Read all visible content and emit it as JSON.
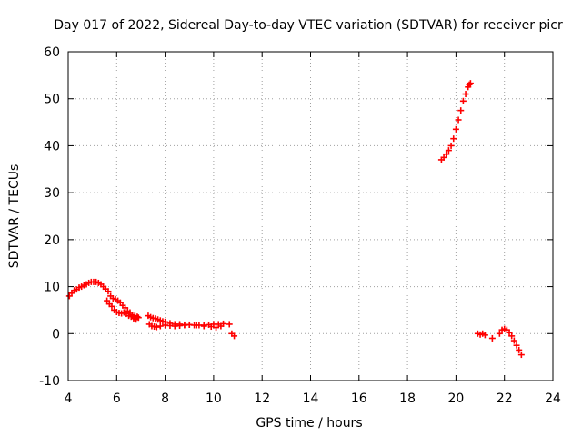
{
  "chart_data": {
    "type": "scatter",
    "title": "Day 017 of 2022, Sidereal Day-to-day VTEC variation (SDTVAR) for receiver picr",
    "xlabel": "GPS time / hours",
    "ylabel": "SDTVAR / TECUs",
    "xlim": [
      4,
      24
    ],
    "ylim": [
      -10,
      60
    ],
    "xticks": [
      4,
      6,
      8,
      10,
      12,
      14,
      16,
      18,
      20,
      22,
      24
    ],
    "yticks": [
      -10,
      0,
      10,
      20,
      30,
      40,
      50,
      60
    ],
    "grid": true,
    "marker": "+",
    "colors": {
      "series": "#ff0000",
      "grid": "#a0a0a0",
      "axes": "#000000"
    },
    "series": [
      {
        "name": "SDTVAR",
        "x": [
          4.05,
          4.15,
          4.25,
          4.35,
          4.45,
          4.55,
          4.65,
          4.75,
          4.85,
          4.95,
          5.05,
          5.15,
          5.25,
          5.35,
          5.45,
          5.55,
          5.65,
          5.75,
          5.85,
          5.95,
          6.05,
          6.15,
          6.25,
          6.35,
          6.45,
          6.55,
          6.65,
          6.75,
          6.85,
          5.6,
          5.7,
          5.8,
          5.9,
          6.0,
          6.1,
          6.2,
          6.3,
          6.4,
          6.5,
          6.6,
          6.7,
          6.8,
          6.9,
          7.3,
          7.4,
          7.5,
          7.6,
          7.7,
          7.8,
          7.9,
          8.0,
          8.2,
          8.4,
          8.6,
          8.8,
          9.0,
          9.2,
          9.4,
          9.6,
          9.8,
          10.0,
          10.2,
          10.4,
          7.35,
          7.45,
          7.55,
          7.65,
          7.8,
          8.0,
          8.2,
          8.4,
          8.6,
          8.8,
          9.0,
          9.3,
          9.6,
          9.9,
          10.1,
          10.3,
          10.65,
          10.75,
          10.85,
          19.4,
          19.5,
          19.6,
          19.7,
          19.8,
          19.9,
          20.0,
          20.1,
          20.2,
          20.3,
          20.4,
          20.5,
          20.55,
          20.6,
          20.9,
          21.0,
          21.1,
          21.2,
          21.5,
          21.8,
          21.9,
          22.0,
          22.1,
          22.2,
          22.3,
          22.4,
          22.5,
          22.6,
          22.7
        ],
        "y": [
          8.0,
          8.6,
          9.2,
          9.4,
          9.8,
          10.0,
          10.3,
          10.5,
          10.8,
          11.0,
          11.0,
          11.0,
          10.8,
          10.5,
          10.0,
          9.5,
          9.0,
          8.0,
          7.5,
          7.3,
          7.0,
          6.6,
          6.0,
          5.5,
          4.8,
          4.5,
          4.0,
          3.8,
          3.6,
          7.0,
          6.3,
          5.8,
          5.0,
          4.6,
          4.4,
          4.3,
          4.5,
          4.2,
          3.8,
          3.6,
          3.2,
          3.0,
          3.4,
          3.8,
          3.5,
          3.3,
          3.2,
          3.0,
          2.8,
          2.6,
          2.5,
          2.2,
          2.0,
          2.0,
          1.9,
          1.9,
          1.8,
          1.8,
          1.8,
          1.9,
          2.0,
          2.0,
          2.1,
          2.0,
          1.6,
          1.5,
          1.4,
          1.6,
          1.8,
          1.7,
          1.6,
          1.7,
          1.8,
          1.9,
          1.8,
          1.6,
          1.5,
          1.3,
          1.6,
          2.0,
          0.0,
          -0.5,
          37.0,
          37.5,
          38.2,
          39.0,
          40.0,
          41.5,
          43.5,
          45.5,
          47.5,
          49.5,
          51.0,
          52.5,
          53.0,
          53.3,
          0.0,
          -0.2,
          0.0,
          -0.3,
          -1.0,
          0.0,
          0.8,
          1.0,
          0.8,
          0.2,
          -0.5,
          -1.5,
          -2.5,
          -3.5,
          -4.5
        ]
      }
    ]
  }
}
